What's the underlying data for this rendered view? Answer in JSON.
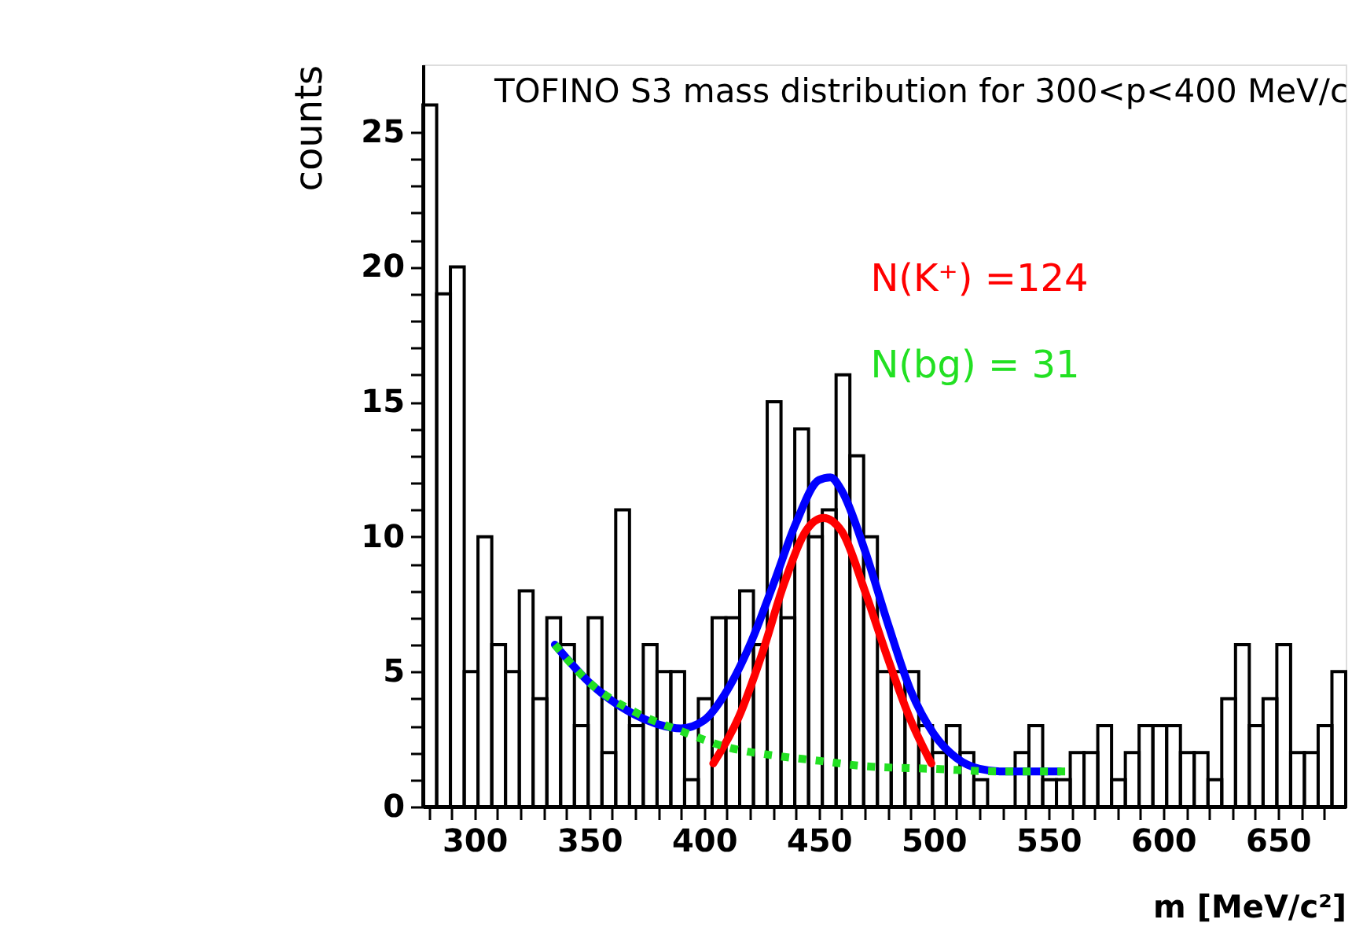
{
  "chart_data": {
    "type": "histogram",
    "title": "TOFINO S3 mass distribution for 300<p<400 MeV/c",
    "xlabel": "m [MeV/c²]",
    "ylabel": "counts",
    "bins": [
      277.5,
      283.5,
      289.5,
      295.5,
      301.5,
      307.5,
      313.5,
      319.5,
      325.5,
      331.5,
      337.5,
      343.5,
      349.5,
      355.5,
      361.5,
      367.5,
      373.5,
      379.5,
      385.5,
      391.5,
      397.5,
      403.5,
      409.5,
      415.5,
      421.5,
      427.5,
      433.5,
      439.5,
      445.5,
      451.5,
      457.5,
      463.5,
      469.5,
      475.5,
      481.5,
      487.5,
      493.5,
      499.5,
      505.5,
      511.5,
      517.5,
      523.5,
      529.5,
      535.5,
      541.5,
      547.5,
      553.5,
      559.5,
      565.5,
      571.5,
      577.5,
      583.5,
      589.5,
      595.5,
      601.5,
      607.5,
      613.5,
      619.5,
      625.5,
      631.5,
      637.5,
      643.5,
      649.5,
      655.5,
      661.5,
      667.5,
      673.5,
      679.5
    ],
    "values": [
      26,
      19,
      20,
      5,
      10,
      6,
      5,
      8,
      4,
      7,
      6,
      3,
      7,
      2,
      11,
      3,
      6,
      5,
      5,
      1,
      4,
      7,
      7,
      8,
      6,
      15,
      7,
      14,
      10,
      11,
      16,
      13,
      10,
      5,
      5,
      5,
      3,
      2,
      3,
      2,
      1,
      0,
      0,
      2,
      3,
      1,
      1,
      2,
      2,
      3,
      1,
      2,
      3,
      3,
      3,
      2,
      2,
      1,
      4,
      6,
      3,
      4,
      6,
      2,
      2,
      3,
      5
    ],
    "color": "#000000",
    "series": [
      {
        "type": "line",
        "color": "#0000ff",
        "line_style": "solid",
        "x": [
          335,
          350,
          370,
          390,
          400,
          410,
          420,
          430,
          440,
          450,
          455,
          460,
          470,
          480,
          490,
          500,
          510,
          520,
          530,
          555
        ],
        "values": [
          6.0,
          4.6,
          3.4,
          2.9,
          3.2,
          4.3,
          6.0,
          8.2,
          10.5,
          12.1,
          12.2,
          11.7,
          9.5,
          6.8,
          4.3,
          2.7,
          1.8,
          1.4,
          1.3,
          1.3
        ]
      },
      {
        "type": "line",
        "name": "N(K⁺) =124",
        "color": "#ff0000",
        "line_style": "solid",
        "x": [
          404,
          415,
          425,
          435,
          445,
          452,
          460,
          470,
          480,
          490,
          499
        ],
        "values": [
          1.6,
          3.3,
          5.6,
          8.3,
          10.3,
          10.7,
          10.2,
          8.0,
          5.5,
          3.2,
          1.6
        ]
      },
      {
        "type": "line",
        "name": "N(bg) =  31",
        "color": "#22e022",
        "line_style": "dotted",
        "x": [
          335,
          350,
          370,
          390,
          410,
          430,
          450,
          470,
          500,
          530,
          560
        ],
        "values": [
          6.0,
          4.6,
          3.5,
          2.8,
          2.2,
          1.9,
          1.7,
          1.5,
          1.4,
          1.3,
          1.3
        ]
      }
    ],
    "xlim": [
      277.5,
      679.5
    ],
    "xticks": [
      {
        "value": 280,
        "label": null
      },
      {
        "value": 290,
        "label": null
      },
      300,
      {
        "value": 310,
        "label": null
      },
      {
        "value": 320,
        "label": null
      },
      {
        "value": 330,
        "label": null
      },
      {
        "value": 340,
        "label": null
      },
      350,
      {
        "value": 360,
        "label": null
      },
      {
        "value": 370,
        "label": null
      },
      {
        "value": 380,
        "label": null
      },
      {
        "value": 390,
        "label": null
      },
      400,
      {
        "value": 410,
        "label": null
      },
      {
        "value": 420,
        "label": null
      },
      {
        "value": 430,
        "label": null
      },
      {
        "value": 440,
        "label": null
      },
      450,
      {
        "value": 460,
        "label": null
      },
      {
        "value": 470,
        "label": null
      },
      {
        "value": 480,
        "label": null
      },
      {
        "value": 490,
        "label": null
      },
      500,
      {
        "value": 510,
        "label": null
      },
      {
        "value": 520,
        "label": null
      },
      {
        "value": 530,
        "label": null
      },
      {
        "value": 540,
        "label": null
      },
      550,
      {
        "value": 560,
        "label": null
      },
      {
        "value": 570,
        "label": null
      },
      {
        "value": 580,
        "label": null
      },
      {
        "value": 590,
        "label": null
      },
      600,
      {
        "value": 610,
        "label": null
      },
      {
        "value": 620,
        "label": null
      },
      {
        "value": 630,
        "label": null
      },
      {
        "value": 640,
        "label": null
      },
      650,
      {
        "value": 660,
        "label": null
      },
      {
        "value": 670,
        "label": null
      }
    ],
    "ylim": [
      0,
      27.5
    ],
    "yticks": [
      0,
      {
        "value": 1,
        "label": null
      },
      {
        "value": 2,
        "label": null
      },
      {
        "value": 3,
        "label": null
      },
      {
        "value": 4,
        "label": null
      },
      5,
      {
        "value": 6,
        "label": null
      },
      {
        "value": 7,
        "label": null
      },
      {
        "value": 8,
        "label": null
      },
      {
        "value": 9,
        "label": null
      },
      10,
      {
        "value": 11,
        "label": null
      },
      {
        "value": 12,
        "label": null
      },
      {
        "value": 13,
        "label": null
      },
      {
        "value": 14,
        "label": null
      },
      15,
      {
        "value": 16,
        "label": null
      },
      {
        "value": 17,
        "label": null
      },
      {
        "value": 18,
        "label": null
      },
      {
        "value": 19,
        "label": null
      },
      20,
      {
        "value": 21,
        "label": null
      },
      {
        "value": 22,
        "label": null
      },
      {
        "value": 23,
        "label": null
      },
      {
        "value": 24,
        "label": null
      },
      25
    ],
    "grid": false
  }
}
